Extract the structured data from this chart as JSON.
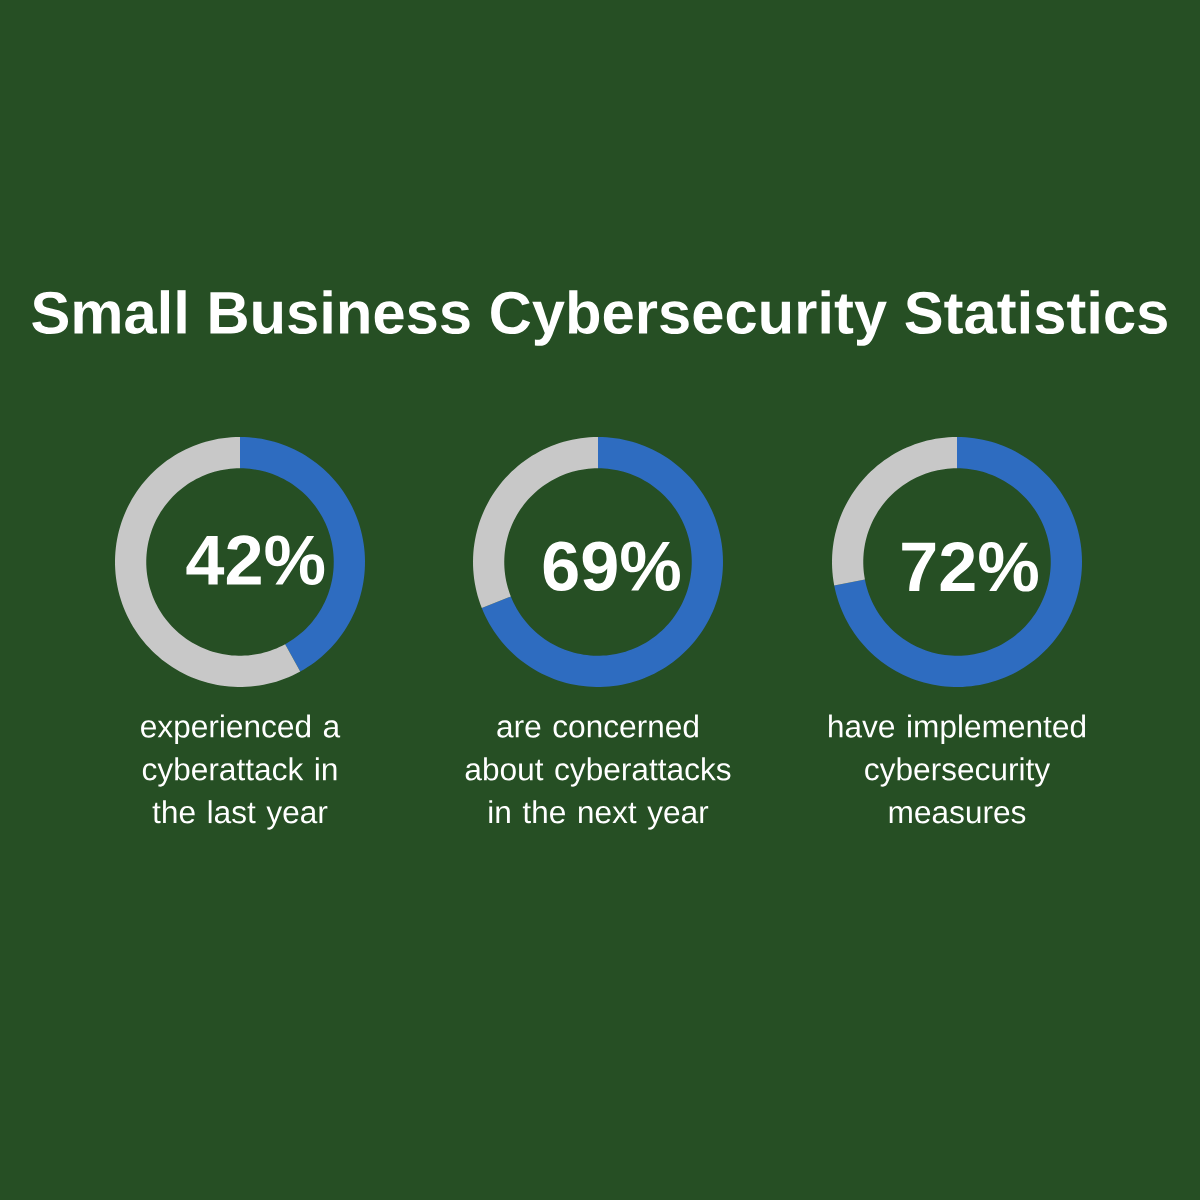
{
  "chart_data": [
    {
      "type": "donut",
      "title": "Small Business Cybersecurity Statistics",
      "categories": [
        null,
        null
      ],
      "values": [
        42,
        58
      ],
      "colors": [
        "#2e6cc0",
        "#c8c8c8"
      ],
      "value_labels": [
        "42%",
        null
      ],
      "annotations": [
        "experienced a cyberattack in the last year"
      ]
    },
    {
      "type": "donut",
      "categories": [
        null,
        null
      ],
      "values": [
        69,
        31
      ],
      "colors": [
        "#2e6cc0",
        "#c8c8c8"
      ],
      "value_labels": [
        "69%",
        null
      ],
      "annotations": [
        "are concerned about cyberattacks in the next year"
      ]
    },
    {
      "type": "donut",
      "categories": [
        null,
        null
      ],
      "values": [
        72,
        28
      ],
      "colors": [
        "#2e6cc0",
        "#c8c8c8"
      ],
      "value_labels": [
        "72%",
        null
      ],
      "annotations": [
        "have implemented cybersecurity measures"
      ]
    }
  ]
}
